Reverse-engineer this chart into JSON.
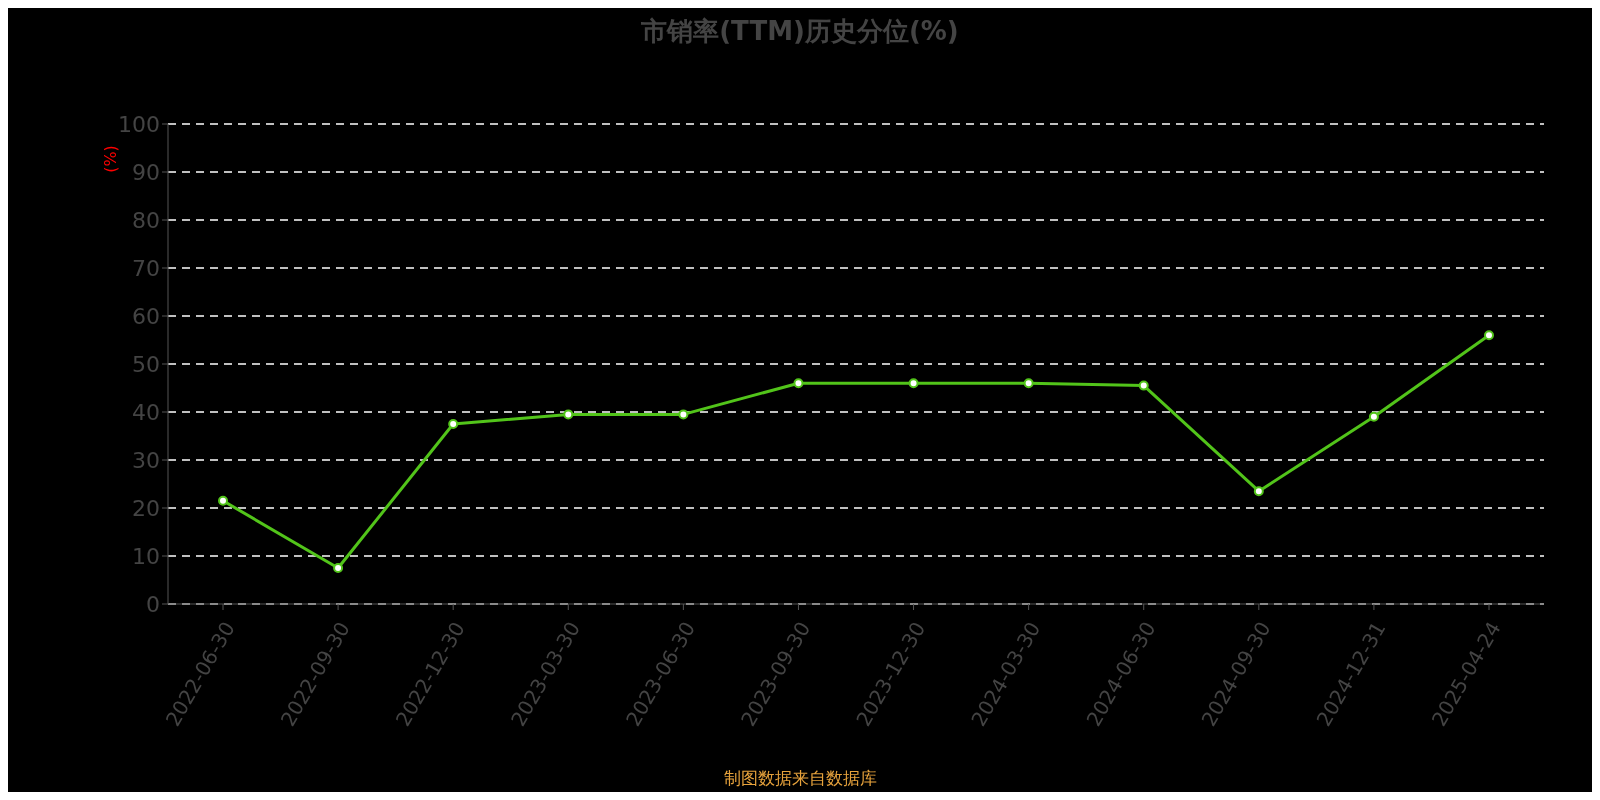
{
  "chart_data": {
    "type": "line",
    "title": "市销率(TTM)历史分位(%)",
    "ylabel": "(%)",
    "categories": [
      "2022-06-30",
      "2022-09-30",
      "2022-12-30",
      "2023-03-30",
      "2023-06-30",
      "2023-09-30",
      "2023-12-30",
      "2024-03-30",
      "2024-06-30",
      "2024-09-30",
      "2024-12-31",
      "2025-04-24"
    ],
    "series": [
      {
        "color": "#52c41a",
        "values": [
          21.5,
          7.5,
          37.5,
          39.5,
          39.5,
          46,
          46,
          46,
          45.5,
          23.5,
          39,
          56
        ]
      }
    ],
    "ylim": [
      0,
      100
    ],
    "yticks": [
      0,
      10,
      20,
      30,
      40,
      50,
      60,
      70,
      80,
      90,
      100
    ],
    "grid": "y",
    "marker": "circle",
    "line_style": "solid",
    "legend": false,
    "annotations": [
      "制图数据来自数据库"
    ]
  }
}
